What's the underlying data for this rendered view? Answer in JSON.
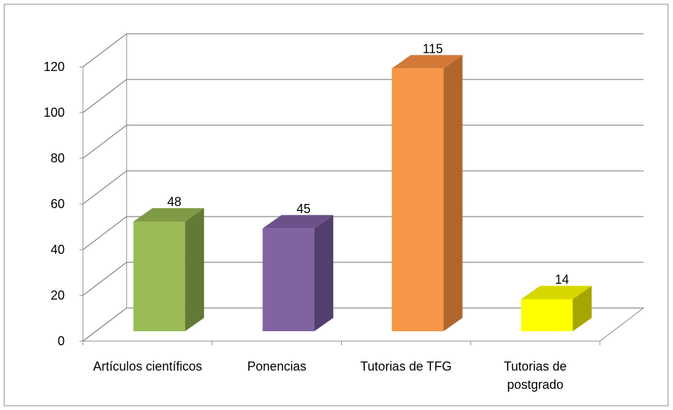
{
  "chart_data": {
    "type": "bar3d",
    "categories": [
      "Artículos científicos",
      "Ponencias",
      "Tutorias de TFG",
      "Tutorias de postgrado"
    ],
    "values": [
      48,
      45,
      115,
      14
    ],
    "colors": [
      "#9bbb59",
      "#8064a2",
      "#f79646",
      "#ffff00"
    ],
    "side_colors": [
      "#637a36",
      "#533f6e",
      "#b0662d",
      "#a6a600"
    ],
    "top_colors": [
      "#7f9b46",
      "#6a5189",
      "#d37a38",
      "#d7d700"
    ],
    "ylim": [
      0,
      120
    ],
    "yticks": [
      0,
      20,
      40,
      60,
      80,
      100,
      120
    ],
    "grid": true
  }
}
